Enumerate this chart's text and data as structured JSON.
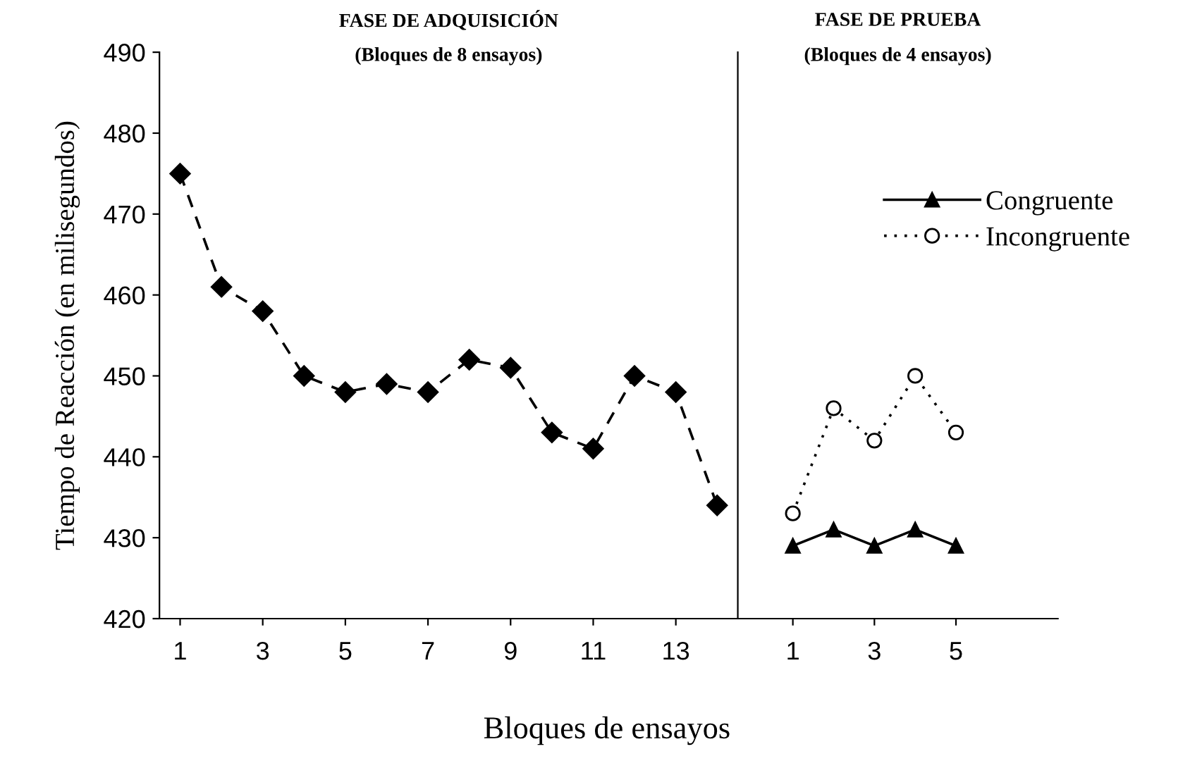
{
  "chart_data": [
    {
      "type": "line",
      "title": "FASE DE ADQUISICIÓN",
      "subtitle": "(Bloques de 8 ensayos)",
      "xlabel": "Bloques de ensayos",
      "ylabel": "Tiempo de Reacción (en milisegundos)",
      "x": [
        1,
        2,
        3,
        4,
        5,
        6,
        7,
        8,
        9,
        10,
        11,
        12,
        13,
        14
      ],
      "series": [
        {
          "color": "#000000",
          "marker": "diamond",
          "line_style": "dashed",
          "values": [
            475,
            461,
            458,
            450,
            448,
            449,
            448,
            452,
            451,
            443,
            441,
            450,
            448,
            434
          ]
        }
      ],
      "xlim": [
        0.5,
        14.5
      ],
      "xticks": [
        1,
        3,
        5,
        7,
        9,
        11,
        13
      ],
      "ylim": [
        420,
        490
      ],
      "yticks": [
        420,
        430,
        440,
        450,
        460,
        470,
        480,
        490
      ],
      "grid": false,
      "legend": false
    },
    {
      "type": "line",
      "title": "FASE DE PRUEBA",
      "subtitle": "(Bloques de 4 ensayos)",
      "x": [
        1,
        2,
        3,
        4,
        5
      ],
      "series": [
        {
          "name": "Congruente",
          "color": "#000000",
          "marker": "triangle",
          "line_style": "solid",
          "values": [
            429,
            431,
            429,
            431,
            429
          ]
        },
        {
          "name": "Incongruente",
          "color": "#000000",
          "marker": "circle",
          "line_style": "dotted",
          "values": [
            433,
            446,
            442,
            450,
            443
          ]
        }
      ],
      "xlim": [
        -0.35,
        7.5
      ],
      "xticks": [
        1,
        3,
        5
      ],
      "ylim": [
        420,
        490
      ],
      "tick_labels": "x",
      "grid": false,
      "legend": "top right"
    }
  ]
}
